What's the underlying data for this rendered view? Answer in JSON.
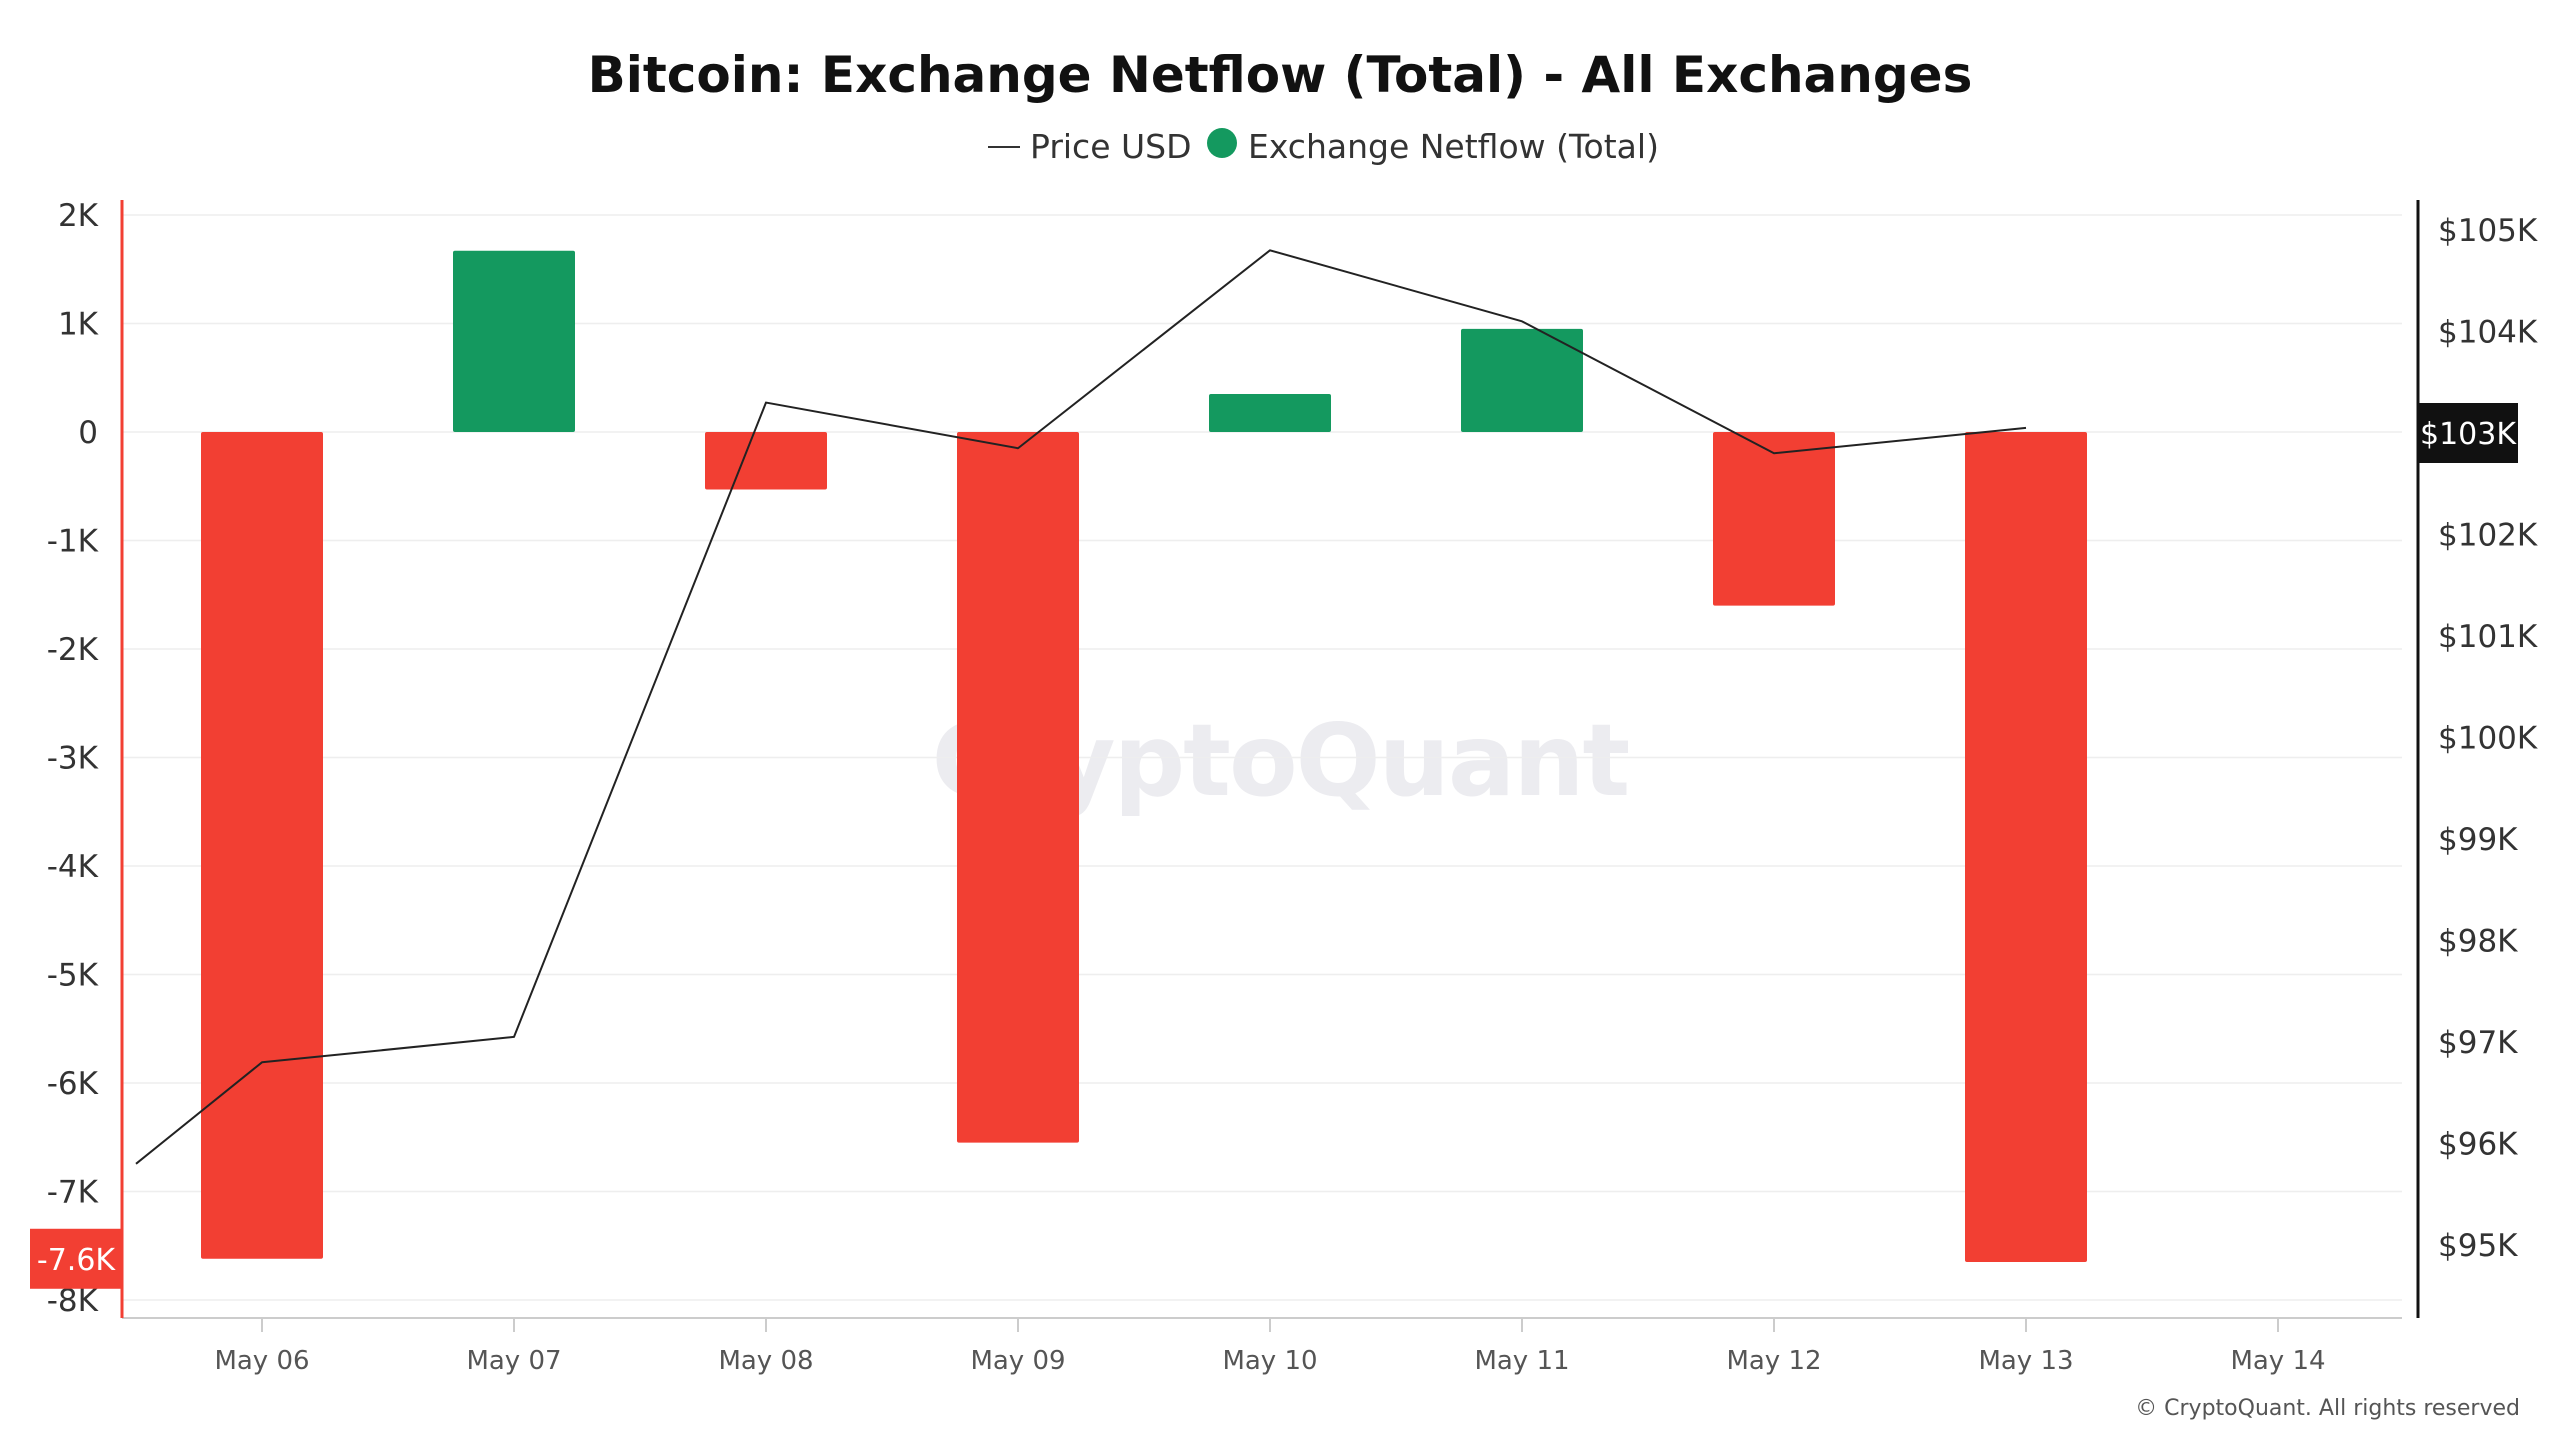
{
  "chart_data": {
    "type": "bar",
    "title": "Bitcoin: Exchange Netflow (Total) - All Exchanges",
    "categories": [
      "May 06",
      "May 07",
      "May 08",
      "May 09",
      "May 10",
      "May 11",
      "May 12",
      "May 13",
      "May 14"
    ],
    "series": [
      {
        "name": "Exchange Netflow (Total)",
        "type": "bar",
        "axis": "left",
        "values": [
          -7.62,
          1.67,
          -0.53,
          -6.55,
          0.35,
          0.95,
          -1.6,
          -7.65,
          null
        ],
        "positive_color": "#14995f",
        "negative_color": "#f23f33"
      },
      {
        "name": "Price USD",
        "type": "line",
        "axis": "right",
        "color": "#222222",
        "x": [
          -0.5,
          0,
          1,
          2,
          3,
          4,
          5,
          6,
          7
        ],
        "values": [
          95.8,
          96.8,
          97.05,
          103.3,
          102.85,
          104.8,
          104.1,
          102.8,
          103.05
        ]
      }
    ],
    "left_axis": {
      "ticks": [
        "2K",
        "1K",
        "0",
        "-1K",
        "-2K",
        "-3K",
        "-4K",
        "-5K",
        "-6K",
        "-7K",
        "-8K"
      ],
      "tick_values": [
        2,
        1,
        0,
        -1,
        -2,
        -3,
        -4,
        -5,
        -6,
        -7,
        -8
      ],
      "ylim": [
        -8,
        2
      ],
      "unit": "K BTC",
      "current_value_label": "-7.6K",
      "current_value": -7.62,
      "line_color": "#f23f33",
      "label_bg": "#f23f33"
    },
    "right_axis": {
      "ticks": [
        "$105K",
        "$104K",
        "$103K",
        "$102K",
        "$101K",
        "$100K",
        "$99K",
        "$98K",
        "$97K",
        "$96K",
        "$95K"
      ],
      "tick_values": [
        105,
        104,
        103,
        102,
        101,
        100,
        99,
        98,
        97,
        96,
        95
      ],
      "unit": "K USD",
      "current_value_label": "$103K",
      "current_value": 103,
      "line_color": "#111111",
      "label_bg": "#111111"
    },
    "legend": {
      "position": "top-center",
      "items": [
        {
          "label": "Price USD",
          "marker": "line"
        },
        {
          "label": "Exchange Netflow (Total)",
          "marker": "dot",
          "color": "#14995f"
        }
      ]
    },
    "grid": true,
    "watermark": "CryptoQuant",
    "copyright": "© CryptoQuant. All rights reserved"
  }
}
